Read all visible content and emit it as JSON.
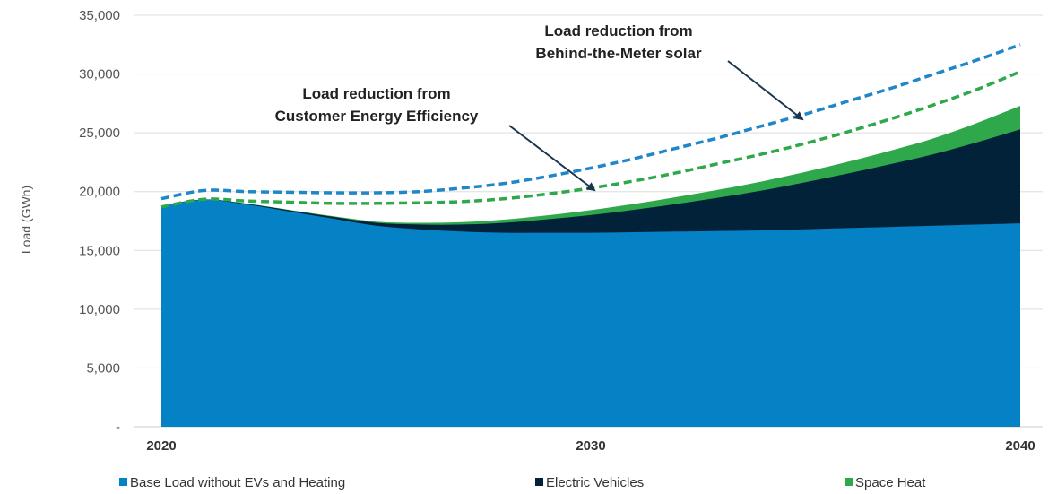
{
  "colors": {
    "base": "#0581c6",
    "ev": "#02223a",
    "heat": "#2ea84a",
    "btm_line": "#1f86c8",
    "ee_line": "#2ea84a",
    "grid": "#dddddd",
    "arrow": "#1b3550"
  },
  "chart_data": {
    "type": "area",
    "ylabel": "Load (GWh)",
    "ylim": [
      0,
      35000
    ],
    "xlim": [
      2020,
      2040
    ],
    "y_ticks": [
      {
        "value": 0,
        "label": "-"
      },
      {
        "value": 5000,
        "label": "5,000"
      },
      {
        "value": 10000,
        "label": "10,000"
      },
      {
        "value": 15000,
        "label": "15,000"
      },
      {
        "value": 20000,
        "label": "20,000"
      },
      {
        "value": 25000,
        "label": "25,000"
      },
      {
        "value": 30000,
        "label": "30,000"
      },
      {
        "value": 35000,
        "label": "35,000"
      }
    ],
    "x_ticks": [
      {
        "value": 2020,
        "label": "2020"
      },
      {
        "value": 2030,
        "label": "2030"
      },
      {
        "value": 2040,
        "label": "2040"
      }
    ],
    "x": [
      2020,
      2021,
      2022,
      2023,
      2024,
      2025,
      2026,
      2027,
      2028,
      2029,
      2030,
      2031,
      2032,
      2033,
      2034,
      2035,
      2036,
      2037,
      2038,
      2039,
      2040
    ],
    "series": [
      {
        "name": "Base Load without EVs and Heating",
        "kind": "area",
        "values": [
          18800,
          19300,
          18900,
          18300,
          17700,
          17100,
          16800,
          16600,
          16500,
          16500,
          16500,
          16550,
          16600,
          16650,
          16700,
          16800,
          16900,
          17000,
          17100,
          17200,
          17300
        ]
      },
      {
        "name": "Electric Vehicles",
        "kind": "area",
        "values": [
          10,
          30,
          60,
          100,
          150,
          250,
          400,
          600,
          850,
          1150,
          1500,
          1900,
          2350,
          2850,
          3400,
          4000,
          4650,
          5350,
          6100,
          7000,
          8000
        ]
      },
      {
        "name": "Space Heat",
        "kind": "area",
        "values": [
          5,
          10,
          20,
          40,
          60,
          100,
          150,
          200,
          270,
          340,
          420,
          500,
          590,
          680,
          780,
          880,
          1000,
          1150,
          1350,
          1650,
          2000
        ]
      },
      {
        "key": "ee",
        "kind": "line",
        "values": [
          18700,
          19350,
          19200,
          19100,
          19000,
          19000,
          19050,
          19150,
          19400,
          19800,
          20300,
          20900,
          21600,
          22400,
          23200,
          24100,
          25100,
          26200,
          27400,
          28700,
          30200
        ]
      },
      {
        "key": "btm",
        "kind": "line",
        "values": [
          19400,
          20100,
          20000,
          19950,
          19900,
          19900,
          20000,
          20300,
          20700,
          21300,
          22000,
          22800,
          23700,
          24600,
          25600,
          26600,
          27700,
          28800,
          30000,
          31200,
          32500
        ]
      }
    ],
    "annotations": [
      {
        "lines": [
          "Load reduction from",
          "Behind-the-Meter solar"
        ]
      },
      {
        "lines": [
          "Load reduction from",
          "Customer Energy Efficiency"
        ]
      }
    ],
    "legend": [
      {
        "label": "Base Load without EVs and Heating",
        "series": 0
      },
      {
        "label": "Electric Vehicles",
        "series": 1
      },
      {
        "label": "Space Heat",
        "series": 2
      }
    ],
    "legend_position": "bottom",
    "grid": true
  }
}
